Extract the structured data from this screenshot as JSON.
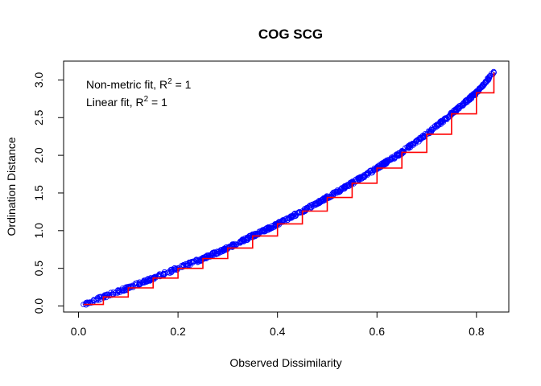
{
  "chart_data": {
    "type": "scatter",
    "title": "COG SCG",
    "xlabel": "Observed Dissimilarity",
    "ylabel": "Ordination Distance",
    "xlim": [
      -0.03,
      0.865
    ],
    "ylim": [
      -0.08,
      3.25
    ],
    "xticks": [
      0.0,
      0.2,
      0.4,
      0.6,
      0.8
    ],
    "xtick_labels": [
      "0.0",
      "0.2",
      "0.4",
      "0.6",
      "0.8"
    ],
    "yticks": [
      0.0,
      0.5,
      1.0,
      1.5,
      2.0,
      2.5,
      3.0
    ],
    "ytick_labels": [
      "0.0",
      "0.5",
      "1.0",
      "1.5",
      "2.0",
      "2.5",
      "3.0"
    ],
    "grid": false,
    "legend_position": "top-left",
    "annotations": [
      {
        "prefix": "Non-metric fit, R",
        "sup": "2",
        "suffix": " = 1"
      },
      {
        "prefix": "Linear fit, R",
        "sup": "2",
        "suffix": " = 1"
      }
    ],
    "series": [
      {
        "kind": "points",
        "marker": "open-circle",
        "color": "#0000ff",
        "x": [
          0.01,
          0.03,
          0.05,
          0.08,
          0.1,
          0.13,
          0.16,
          0.2,
          0.25,
          0.3,
          0.35,
          0.4,
          0.45,
          0.5,
          0.55,
          0.6,
          0.65,
          0.7,
          0.75,
          0.78,
          0.8,
          0.82,
          0.835
        ],
        "y": [
          0.02,
          0.07,
          0.12,
          0.19,
          0.24,
          0.32,
          0.4,
          0.5,
          0.63,
          0.77,
          0.93,
          1.09,
          1.26,
          1.44,
          1.63,
          1.83,
          2.04,
          2.28,
          2.55,
          2.71,
          2.83,
          2.97,
          3.1
        ]
      },
      {
        "kind": "step-line",
        "color": "#ff0000",
        "x": [
          0.01,
          0.05,
          0.1,
          0.15,
          0.2,
          0.25,
          0.3,
          0.35,
          0.4,
          0.45,
          0.5,
          0.55,
          0.6,
          0.65,
          0.7,
          0.75,
          0.8,
          0.835
        ],
        "y": [
          0.02,
          0.12,
          0.24,
          0.37,
          0.5,
          0.63,
          0.77,
          0.93,
          1.09,
          1.26,
          1.44,
          1.63,
          1.83,
          2.04,
          2.28,
          2.55,
          2.83,
          3.1
        ]
      }
    ]
  }
}
